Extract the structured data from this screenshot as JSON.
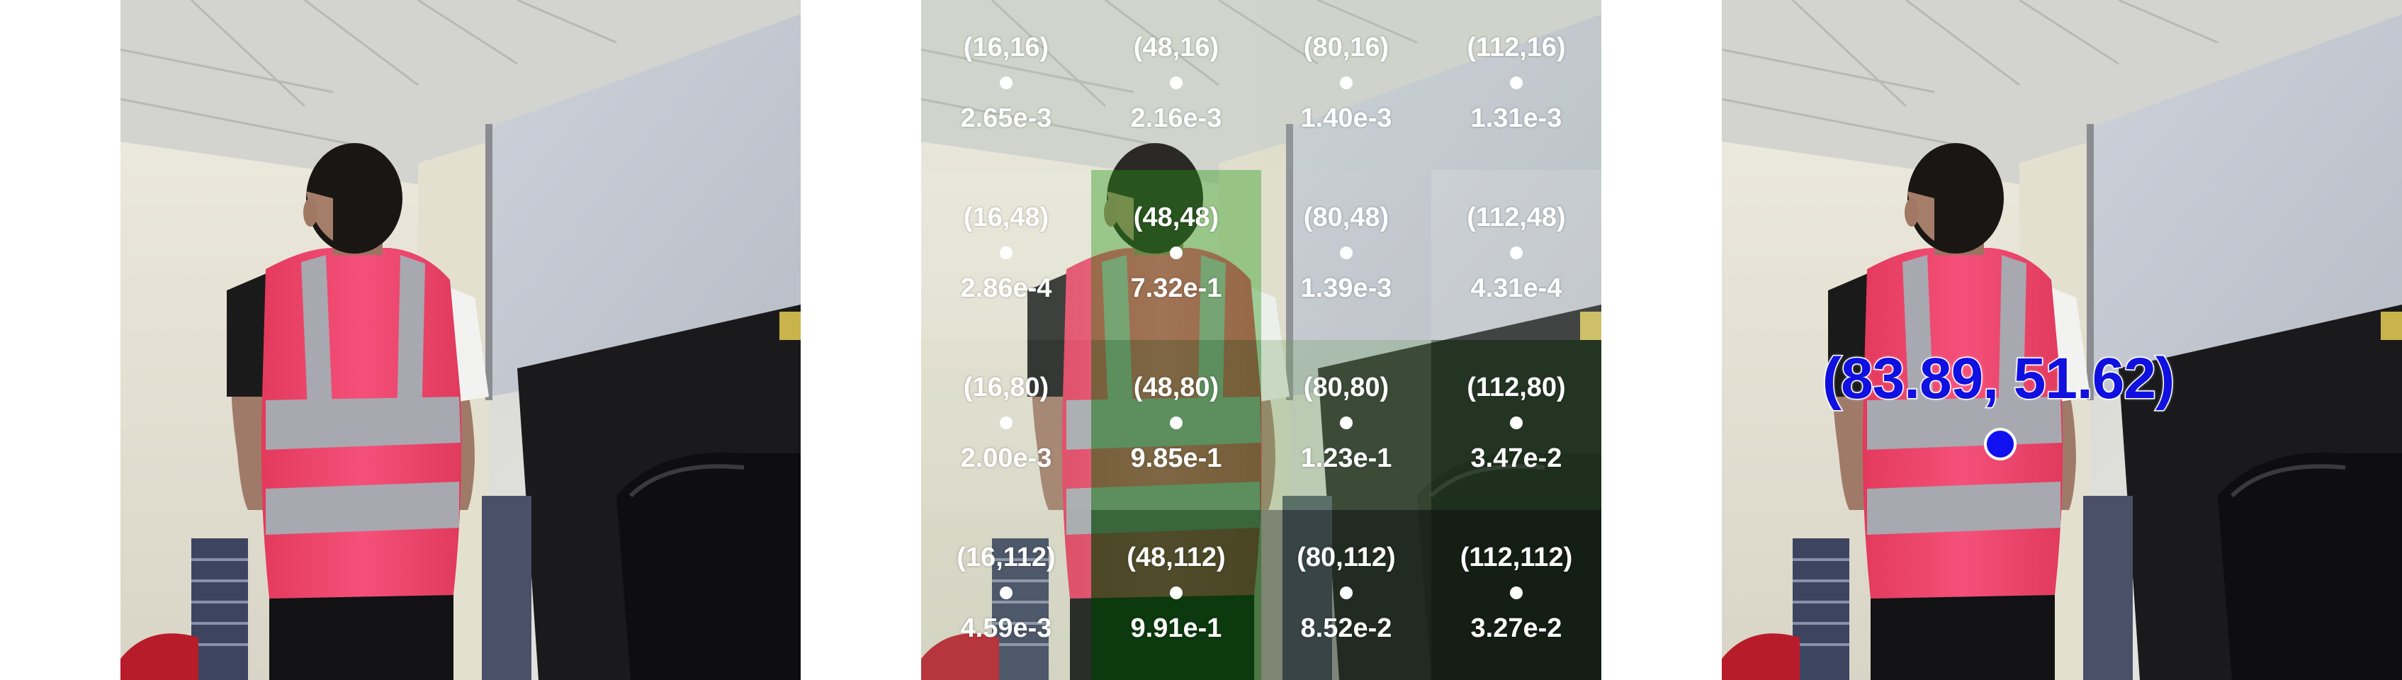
{
  "panels": [
    {
      "id": "original",
      "caption": ""
    },
    {
      "id": "grid",
      "caption": ""
    },
    {
      "id": "result",
      "caption": ""
    }
  ],
  "grid": {
    "rows": [
      [
        {
          "coord": "(16,16)",
          "score": "2.65e-3",
          "tint": "#c8dcc0",
          "alpha": 0.1
        },
        {
          "coord": "(48,16)",
          "score": "2.16e-3",
          "tint": "#c8dcc0",
          "alpha": 0.1
        },
        {
          "coord": "(80,16)",
          "score": "1.40e-3",
          "tint": "#c0d4bc",
          "alpha": 0.12
        },
        {
          "coord": "(112,16)",
          "score": "1.31e-3",
          "tint": "#c0d4bc",
          "alpha": 0.12
        }
      ],
      [
        {
          "coord": "(16,48)",
          "score": "2.86e-4",
          "tint": "#e0ecd8",
          "alpha": 0.18
        },
        {
          "coord": "(48,48)",
          "score": "7.32e-1",
          "tint": "#3aa02a",
          "alpha": 0.45
        },
        {
          "coord": "(80,48)",
          "score": "1.39e-3",
          "tint": "#c8dcc0",
          "alpha": 0.1
        },
        {
          "coord": "(112,48)",
          "score": "4.31e-4",
          "tint": "#e4eee0",
          "alpha": 0.2
        }
      ],
      [
        {
          "coord": "(16,80)",
          "score": "2.00e-3",
          "tint": "#c8dcc0",
          "alpha": 0.15
        },
        {
          "coord": "(48,80)",
          "score": "9.85e-1",
          "tint": "#1e7a1a",
          "alpha": 0.55
        },
        {
          "coord": "(80,80)",
          "score": "1.23e-1",
          "tint": "#7aa86c",
          "alpha": 0.35
        },
        {
          "coord": "(112,80)",
          "score": "3.47e-2",
          "tint": "#2e4a2a",
          "alpha": 0.55
        }
      ],
      [
        {
          "coord": "(16,112)",
          "score": "4.59e-3",
          "tint": "#b8d0b0",
          "alpha": 0.15
        },
        {
          "coord": "(48,112)",
          "score": "9.91e-1",
          "tint": "#0a4a0a",
          "alpha": 0.7
        },
        {
          "coord": "(80,112)",
          "score": "8.52e-2",
          "tint": "#2a3a28",
          "alpha": 0.55
        },
        {
          "coord": "(112,112)",
          "score": "3.27e-2",
          "tint": "#1a2a18",
          "alpha": 0.6
        }
      ]
    ]
  },
  "prediction": {
    "label": "(83.89, 51.62)",
    "x": 83.89,
    "y": 51.62,
    "color": "#1010e0"
  },
  "colors": {
    "vest": "#f2456a",
    "reflective_stripe": "#a8a8b0",
    "ceiling": "#d8d8d4",
    "wall": "#e6e4da",
    "projector_screen": "#c8ccd6"
  }
}
